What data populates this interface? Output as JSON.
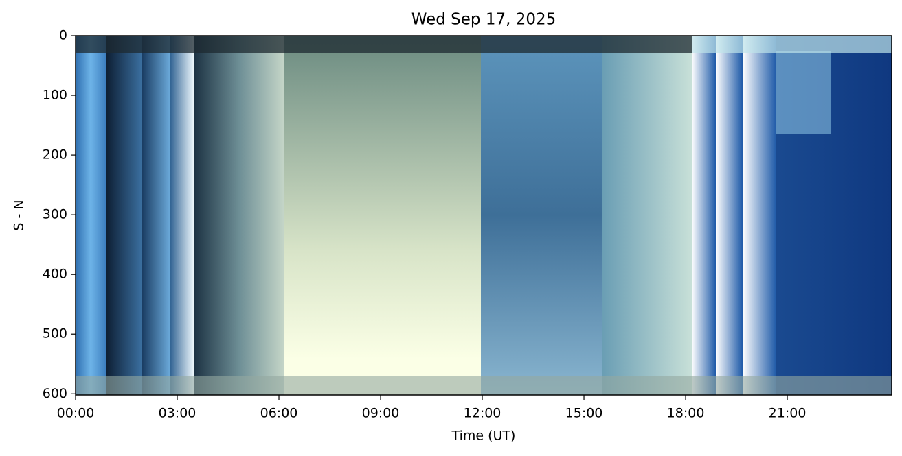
{
  "chart_data": {
    "type": "keogram",
    "title": "Wed Sep 17, 2025",
    "xlabel": "Time (UT)",
    "ylabel": "S - N",
    "xlim": [
      0,
      24.08
    ],
    "xticks": [
      {
        "value": 0,
        "label": "00:00"
      },
      {
        "value": 3,
        "label": "03:00"
      },
      {
        "value": 6,
        "label": "06:00"
      },
      {
        "value": 9,
        "label": "09:00"
      },
      {
        "value": 12,
        "label": "12:00"
      },
      {
        "value": 15,
        "label": "15:00"
      },
      {
        "value": 18,
        "label": "18:00"
      },
      {
        "value": 21,
        "label": "21:00"
      }
    ],
    "ylim": [
      0,
      602
    ],
    "y_inverted": true,
    "yticks": [
      0,
      100,
      200,
      300,
      400,
      500,
      600
    ]
  }
}
